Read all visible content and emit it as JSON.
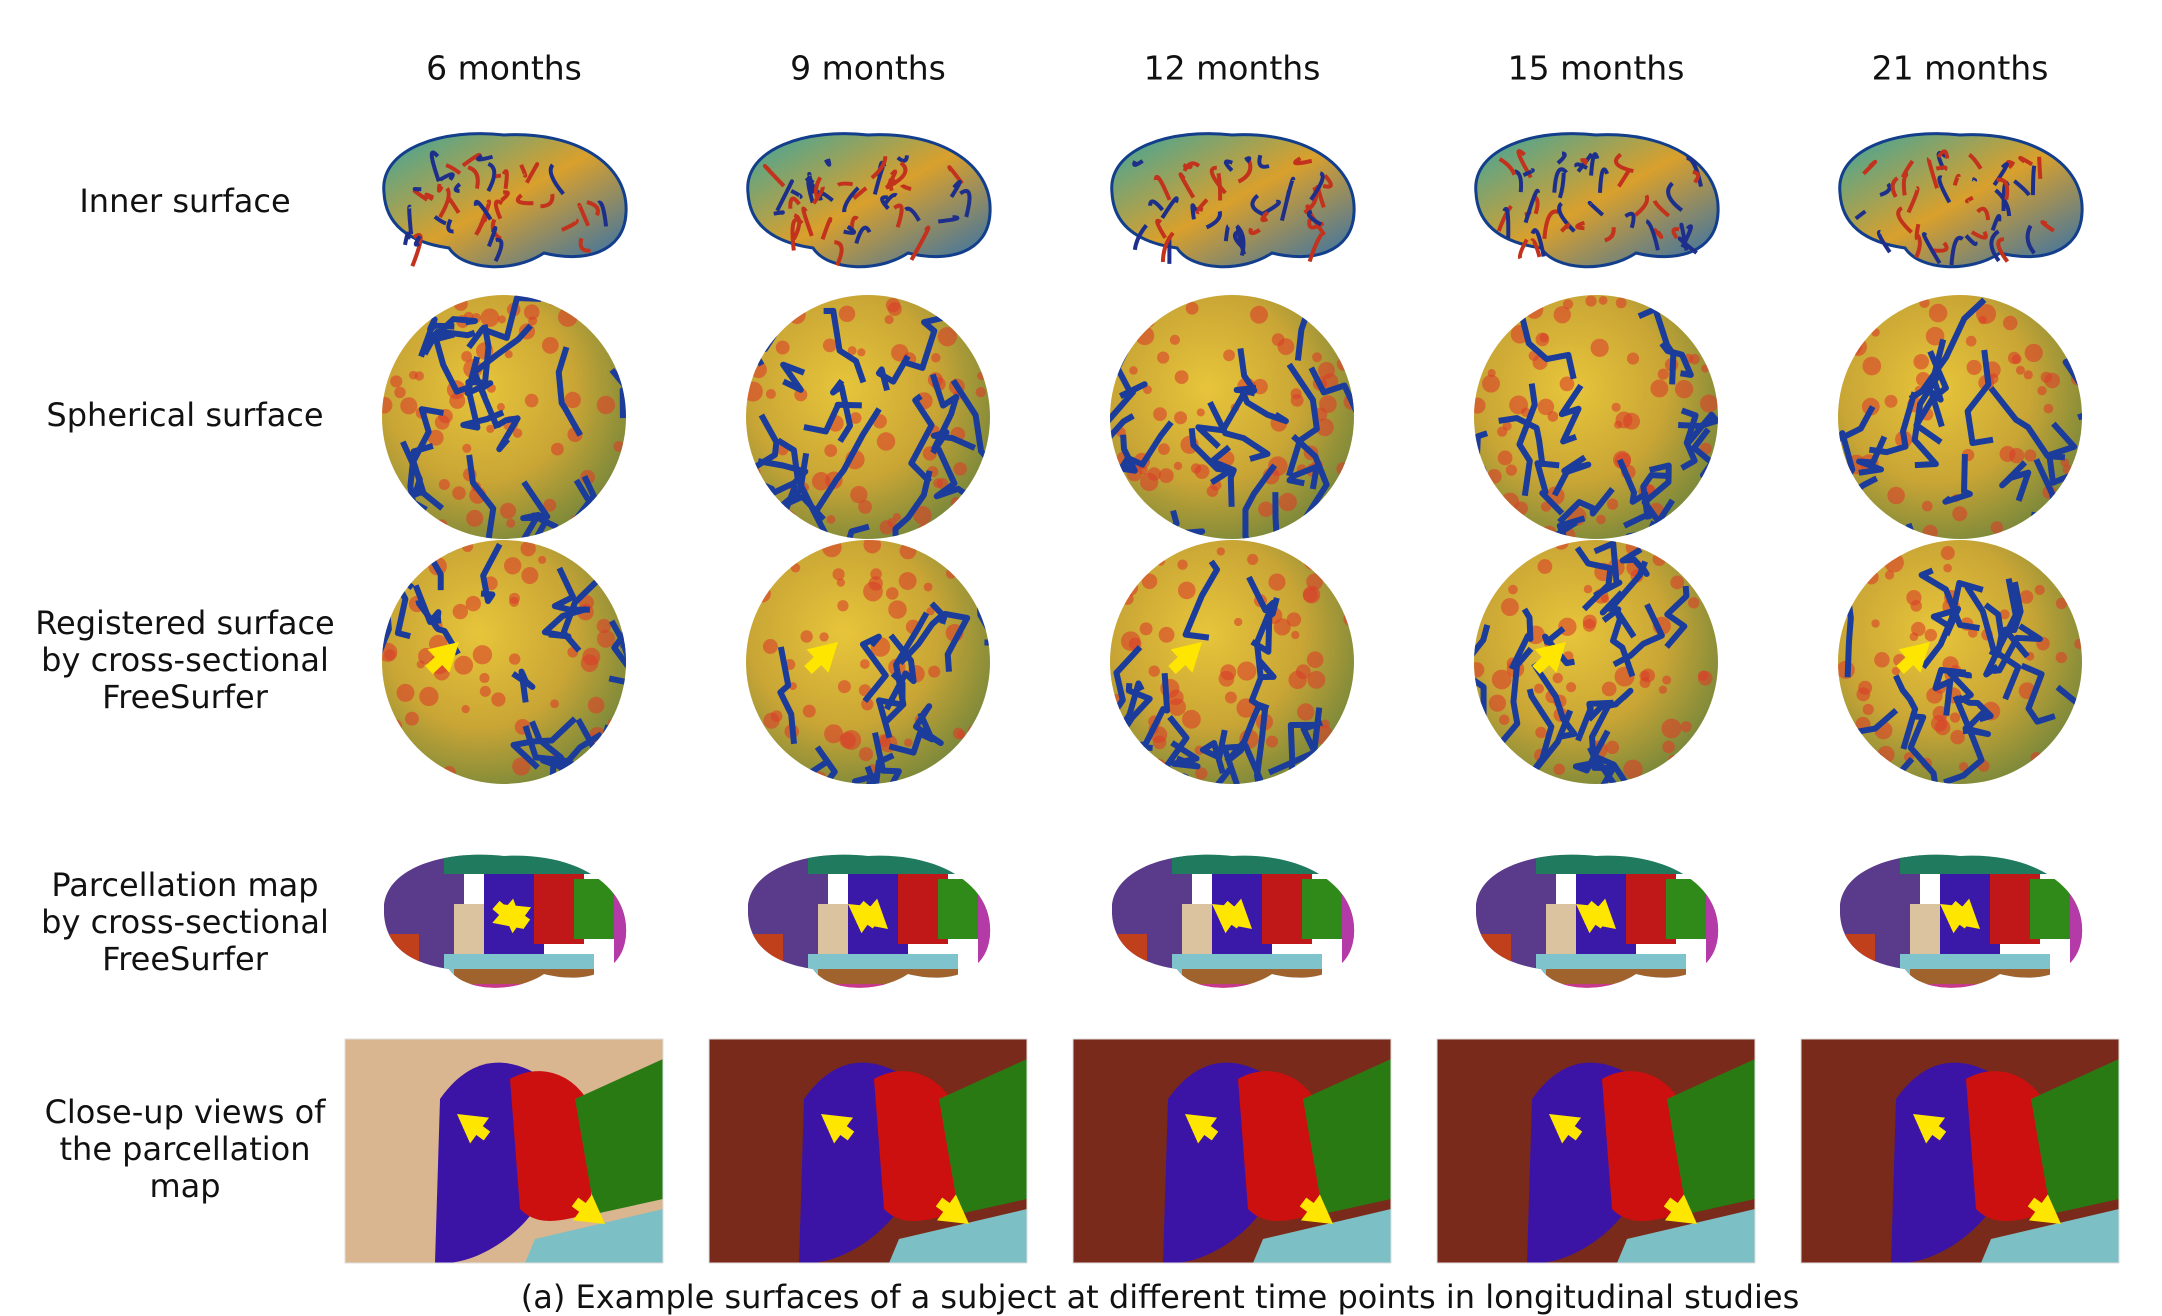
{
  "columns": [
    "6 months",
    "9 months",
    "12 months",
    "15 months",
    "21 months"
  ],
  "rows": [
    [
      "Inner surface"
    ],
    [
      "Spherical surface"
    ],
    [
      "Registered surface",
      "by cross-sectional",
      "FreeSurfer"
    ],
    [
      "Parcellation map",
      "by cross-sectional",
      "FreeSurfer"
    ],
    [
      "Close-up views of",
      "the parcellation",
      "map"
    ]
  ],
  "caption": "(a) Example surfaces of a subject at different time points in longitudinal studies"
}
